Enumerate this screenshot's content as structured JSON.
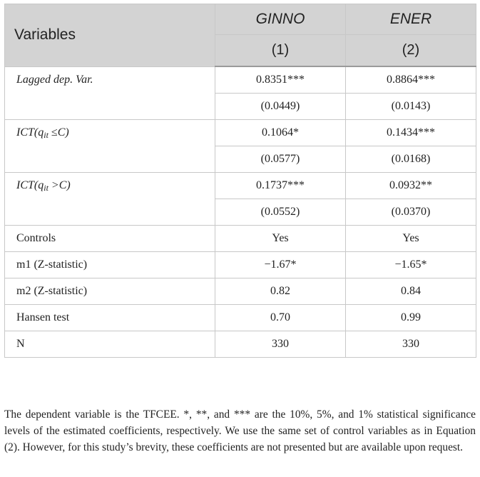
{
  "table": {
    "header": {
      "col0": "Variables",
      "col1": "GINNO",
      "col2": "ENER",
      "num1": "(1)",
      "num2": "(2)"
    },
    "rows": [
      {
        "label": "Lagged dep. Var.",
        "c1": "0.8351***",
        "c2": "0.8864***",
        "se1": "(0.0449)",
        "se2": "(0.0143)"
      },
      {
        "label_pre": "ICT(q",
        "label_sub": "it",
        "label_post": " ≤C)",
        "c1": "0.1064*",
        "c2": "0.1434***",
        "se1": "(0.0577)",
        "se2": "(0.0168)"
      },
      {
        "label_pre": "ICT(q",
        "label_sub": "it",
        "label_post": " >C)",
        "c1": "0.1737***",
        "c2": "0.0932**",
        "se1": "(0.0552)",
        "se2": "(0.0370)"
      },
      {
        "label": "Controls",
        "c1": "Yes",
        "c2": "Yes"
      },
      {
        "label": "m1 (Z-statistic)",
        "c1": "−1.67*",
        "c2": "−1.65*"
      },
      {
        "label": "m2 (Z-statistic)",
        "c1": "0.82",
        "c2": "0.84"
      },
      {
        "label": "Hansen test",
        "c1": "0.70",
        "c2": "0.99"
      },
      {
        "label": "N",
        "c1": "330",
        "c2": "330"
      }
    ]
  },
  "note": "The dependent variable is the TFCEE. *, **, and *** are the 10%, 5%, and 1% statistical significance levels of the estimated coefficients, respectively. We use the same set of control variables as in Equation (2). However, for this study’s brevity, these coefficients are not presented but are available upon request."
}
